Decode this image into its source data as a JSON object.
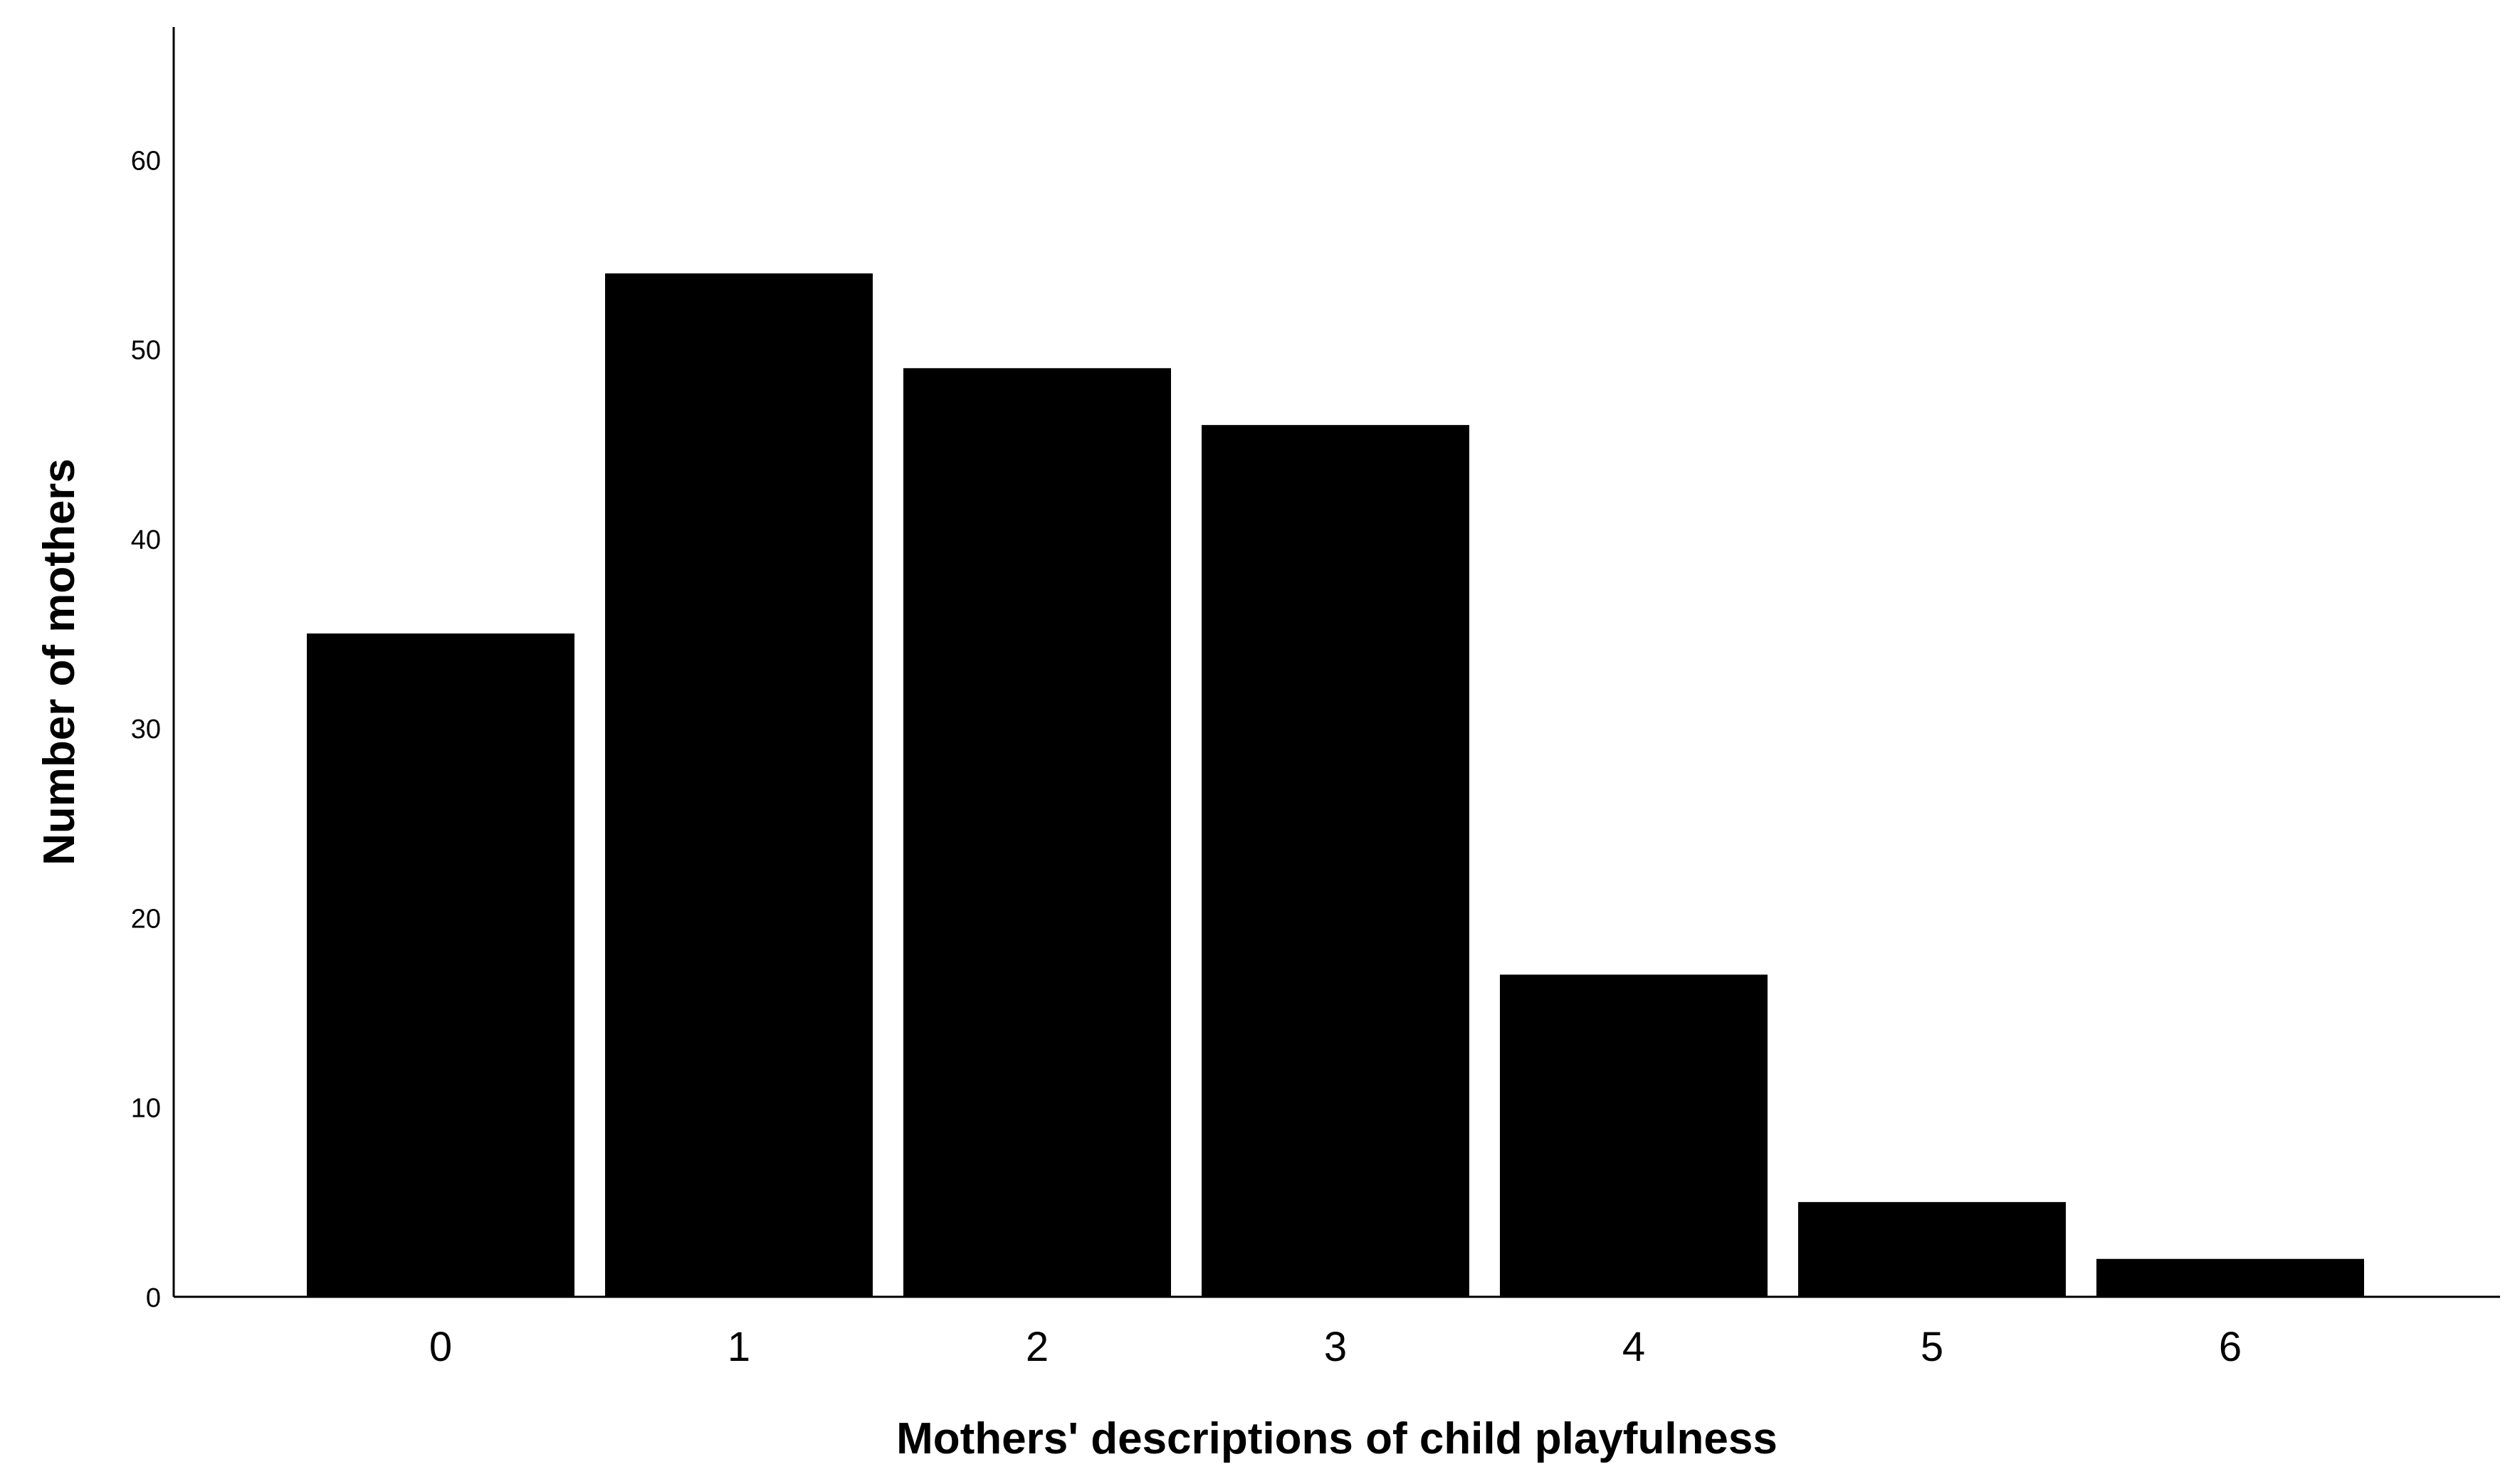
{
  "chart_data": {
    "type": "bar",
    "categories": [
      "0",
      "1",
      "2",
      "3",
      "4",
      "5",
      "6"
    ],
    "values": [
      35,
      54,
      49,
      46,
      17,
      5,
      2
    ],
    "title": "",
    "xlabel": "Mothers' descriptions of child playfulness",
    "ylabel": "Number of mothers",
    "ylim": [
      0,
      67
    ],
    "yticks": [
      0,
      10,
      20,
      30,
      40,
      50,
      60
    ],
    "grid": false,
    "colors": {
      "bar": "#000000",
      "axis": "#000000",
      "background": "#ffffff"
    }
  }
}
